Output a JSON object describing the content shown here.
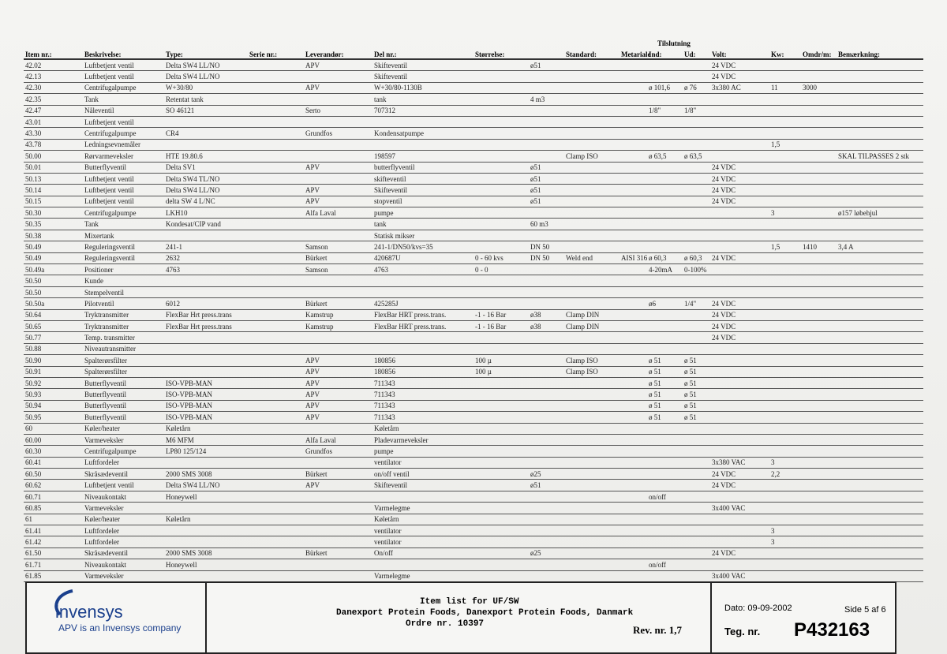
{
  "table": {
    "group_header": "Tilslutning",
    "headers": [
      "Item nr.:",
      "Beskrivelse:",
      "Type:",
      "Serie nr.:",
      "Leverandør:",
      "Del nr.:",
      "Størrelse:",
      null,
      "Standard:",
      "Metariale",
      "Ind:",
      "Ud:",
      "Volt:",
      "Kw:",
      "Omdr/m:",
      "Bemærkning:"
    ],
    "rows": [
      [
        "42.02",
        "Luftbetjent ventil",
        "Delta SW4 LL/NO",
        null,
        "APV",
        "Skifteventil",
        null,
        "ø51",
        null,
        null,
        null,
        null,
        "24 VDC",
        null,
        null,
        null
      ],
      [
        "42.13",
        "Luftbetjent ventil",
        "Delta SW4 LL/NO",
        null,
        null,
        "Skifteventil",
        null,
        null,
        null,
        null,
        null,
        null,
        "24 VDC",
        null,
        null,
        null
      ],
      [
        "42.30",
        "Centrifugalpumpe",
        "W+30/80",
        null,
        "APV",
        "W+30/80-1130B",
        null,
        null,
        null,
        null,
        "ø 101,6",
        "ø 76",
        "3x380 AC",
        "11",
        "3000",
        null
      ],
      [
        "42.35",
        "Tank",
        "Retentat tank",
        null,
        null,
        "tank",
        null,
        "4 m3",
        null,
        null,
        null,
        null,
        null,
        null,
        null,
        null
      ],
      [
        "42.47",
        "Nåleventil",
        "SO 46121",
        null,
        "Serto",
        "707312",
        null,
        null,
        null,
        null,
        "1/8\"",
        "1/8\"",
        null,
        null,
        null,
        null
      ],
      [
        "43.01",
        "Luftbetjent ventil",
        null,
        null,
        null,
        null,
        null,
        null,
        null,
        null,
        null,
        null,
        null,
        null,
        null,
        null
      ],
      [
        "43.30",
        "Centrifugalpumpe",
        "CR4",
        null,
        "Grundfos",
        "Kondensatpumpe",
        null,
        null,
        null,
        null,
        null,
        null,
        null,
        null,
        null,
        null
      ],
      [
        "43.78",
        "Ledningsevnemåler",
        null,
        null,
        null,
        null,
        null,
        null,
        null,
        null,
        null,
        null,
        null,
        "1,5",
        null,
        null
      ],
      [
        "50.00",
        "Rørvarmeveksler",
        "HTE 19.80.6",
        null,
        null,
        "198597",
        null,
        null,
        "Clamp ISO",
        null,
        "ø 63,5",
        "ø 63,5",
        null,
        null,
        null,
        "SKAL TILPASSES 2 stk"
      ],
      [
        "50.01",
        "Butterflyventil",
        "Delta SV1",
        null,
        "APV",
        "butterflyventil",
        null,
        "ø51",
        null,
        null,
        null,
        null,
        "24 VDC",
        null,
        null,
        null
      ],
      [
        "50.13",
        "Luftbetjent ventil",
        "Delta SW4 TL/NO",
        null,
        null,
        "skifteventil",
        null,
        "ø51",
        null,
        null,
        null,
        null,
        "24 VDC",
        null,
        null,
        null
      ],
      [
        "50.14",
        "Luftbetjent ventil",
        "Delta SW4 LL/NO",
        null,
        "APV",
        "Skifteventil",
        null,
        "ø51",
        null,
        null,
        null,
        null,
        "24 VDC",
        null,
        null,
        null
      ],
      [
        "50.15",
        "Luftbetjent ventil",
        "delta SW 4 L/NC",
        null,
        "APV",
        "stopventil",
        null,
        "ø51",
        null,
        null,
        null,
        null,
        "24 VDC",
        null,
        null,
        null
      ],
      [
        "50.30",
        "Centrifugalpumpe",
        "LKH10",
        null,
        "Alfa Laval",
        "pumpe",
        null,
        null,
        null,
        null,
        null,
        null,
        null,
        "3",
        null,
        "ø157 løbehjul"
      ],
      [
        "50.35",
        "Tank",
        "Kondesat/CIP vand",
        null,
        null,
        "tank",
        null,
        "60 m3",
        null,
        null,
        null,
        null,
        null,
        null,
        null,
        null
      ],
      [
        "50.38",
        "Mixertank",
        null,
        null,
        null,
        "Statisk mikser",
        null,
        null,
        null,
        null,
        null,
        null,
        null,
        null,
        null,
        null
      ],
      [
        "50.49",
        "Reguleringsventil",
        "241-1",
        null,
        "Samson",
        "241-1/DN50/kvs=35",
        null,
        "DN 50",
        null,
        null,
        null,
        null,
        null,
        "1,5",
        "1410",
        "3,4 A"
      ],
      [
        "50.49",
        "Reguleringsventil",
        "2632",
        null,
        "Bürkert",
        "420687U",
        "0 - 60 kvs",
        "DN 50",
        "Weld end",
        "AISI 316",
        "ø 60,3",
        "ø 60,3",
        "24 VDC",
        null,
        null,
        null
      ],
      [
        "50.49a",
        "Positioner",
        "4763",
        null,
        "Samson",
        "4763",
        "0 - 0",
        null,
        null,
        null,
        "4-20mA",
        "0-100%",
        null,
        null,
        null,
        null
      ],
      [
        "50.50",
        "Kunde",
        null,
        null,
        null,
        null,
        null,
        null,
        null,
        null,
        null,
        null,
        null,
        null,
        null,
        null
      ],
      [
        "50.50",
        "Stempelventil",
        null,
        null,
        null,
        null,
        null,
        null,
        null,
        null,
        null,
        null,
        null,
        null,
        null,
        null
      ],
      [
        "50.50a",
        "Pilotventil",
        "6012",
        null,
        "Bürkert",
        "425285J",
        null,
        null,
        null,
        null,
        "ø6",
        "1/4\"",
        "24 VDC",
        null,
        null,
        null
      ],
      [
        "50.64",
        "Tryktransmitter",
        "FlexBar Hrt press.trans",
        null,
        "Kamstrup",
        "FlexBar HRT press.trans.",
        "-1 - 16 Bar",
        "ø38",
        "Clamp DIN",
        null,
        null,
        null,
        "24 VDC",
        null,
        null,
        null
      ],
      [
        "50.65",
        "Tryktransmitter",
        "FlexBar Hrt press.trans",
        null,
        "Kamstrup",
        "FlexBar HRT press.trans.",
        "-1 - 16 Bar",
        "ø38",
        "Clamp DIN",
        null,
        null,
        null,
        "24 VDC",
        null,
        null,
        null
      ],
      [
        "50.77",
        "Temp. transmitter",
        null,
        null,
        null,
        null,
        null,
        null,
        null,
        null,
        null,
        null,
        "24 VDC",
        null,
        null,
        null
      ],
      [
        "50.88",
        "Niveautransmitter",
        null,
        null,
        null,
        null,
        null,
        null,
        null,
        null,
        null,
        null,
        null,
        null,
        null,
        null
      ],
      [
        "50.90",
        "Spalterørsfilter",
        null,
        null,
        "APV",
        "180856",
        "100 µ",
        null,
        "Clamp ISO",
        null,
        "ø 51",
        "ø 51",
        null,
        null,
        null,
        null
      ],
      [
        "50.91",
        "Spalterørsfilter",
        null,
        null,
        "APV",
        "180856",
        "100 µ",
        null,
        "Clamp ISO",
        null,
        "ø 51",
        "ø 51",
        null,
        null,
        null,
        null
      ],
      [
        "50.92",
        "Butterflyventil",
        "ISO-VPB-MAN",
        null,
        "APV",
        "711343",
        null,
        null,
        null,
        null,
        "ø 51",
        "ø 51",
        null,
        null,
        null,
        null
      ],
      [
        "50.93",
        "Butterflyventil",
        "ISO-VPB-MAN",
        null,
        "APV",
        "711343",
        null,
        null,
        null,
        null,
        "ø 51",
        "ø 51",
        null,
        null,
        null,
        null
      ],
      [
        "50.94",
        "Butterflyventil",
        "ISO-VPB-MAN",
        null,
        "APV",
        "711343",
        null,
        null,
        null,
        null,
        "ø 51",
        "ø 51",
        null,
        null,
        null,
        null
      ],
      [
        "50.95",
        "Butterflyventil",
        "ISO-VPB-MAN",
        null,
        "APV",
        "711343",
        null,
        null,
        null,
        null,
        "ø 51",
        "ø 51",
        null,
        null,
        null,
        null
      ],
      [
        "60",
        "Køler/heater",
        "Køletårn",
        null,
        null,
        "Køletårn",
        null,
        null,
        null,
        null,
        null,
        null,
        null,
        null,
        null,
        null
      ],
      [
        "60.00",
        "Varmeveksler",
        "M6 MFM",
        null,
        "Alfa Laval",
        "Pladevarmeveksler",
        null,
        null,
        null,
        null,
        null,
        null,
        null,
        null,
        null,
        null
      ],
      [
        "60.30",
        "Centrifugalpumpe",
        "LP80 125/124",
        null,
        "Grundfos",
        "pumpe",
        null,
        null,
        null,
        null,
        null,
        null,
        null,
        null,
        null,
        null
      ],
      [
        "60.41",
        "Luftfordeler",
        null,
        null,
        null,
        "ventilator",
        null,
        null,
        null,
        null,
        null,
        null,
        "3x380 VAC",
        "3",
        null,
        null
      ],
      [
        "60.50",
        "Skråsædeventil",
        "2000 SMS 3008",
        null,
        "Bürkert",
        "on/off ventil",
        null,
        "ø25",
        null,
        null,
        null,
        null,
        "24 VDC",
        "2,2",
        null,
        null
      ],
      [
        "60.62",
        "Luftbetjent ventil",
        "Delta SW4 LL/NO",
        null,
        "APV",
        "Skifteventil",
        null,
        "ø51",
        null,
        null,
        null,
        null,
        "24 VDC",
        null,
        null,
        null
      ],
      [
        "60.71",
        "Niveaukontakt",
        "Honeywell",
        null,
        null,
        null,
        null,
        null,
        null,
        null,
        "on/off",
        null,
        null,
        null,
        null,
        null
      ],
      [
        "60.85",
        "Varmeveksler",
        null,
        null,
        null,
        "Varmelegme",
        null,
        null,
        null,
        null,
        null,
        null,
        "3x400 VAC",
        null,
        null,
        null
      ],
      [
        "61",
        "Køler/heater",
        "Køletårn",
        null,
        null,
        "Køletårn",
        null,
        null,
        null,
        null,
        null,
        null,
        null,
        null,
        null,
        null
      ],
      [
        "61.41",
        "Luftfordeler",
        null,
        null,
        null,
        "ventilator",
        null,
        null,
        null,
        null,
        null,
        null,
        null,
        "3",
        null,
        null
      ],
      [
        "61.42",
        "Luftfordeler",
        null,
        null,
        null,
        "ventilator",
        null,
        null,
        null,
        null,
        null,
        null,
        null,
        "3",
        null,
        null
      ],
      [
        "61.50",
        "Skråsædeventil",
        "2000 SMS 3008",
        null,
        "Bürkert",
        "On/off",
        null,
        "ø25",
        null,
        null,
        null,
        null,
        "24 VDC",
        null,
        null,
        null
      ],
      [
        "61.71",
        "Niveaukontakt",
        "Honeywell",
        null,
        null,
        null,
        null,
        null,
        null,
        null,
        "on/off",
        null,
        null,
        null,
        null,
        null
      ],
      [
        "61.85",
        "Varmeveksler",
        null,
        null,
        null,
        "Varmelegme",
        null,
        null,
        null,
        null,
        null,
        null,
        "3x400 VAC",
        null,
        null,
        null
      ]
    ]
  },
  "footer": {
    "logo": "invensys",
    "tagline": "APV is an Invensys company",
    "title": "Item list for UF/SW",
    "customer": "Danexport Protein Foods, Danexport Protein Foods, Danmark",
    "order": "Ordre nr. 10397",
    "revision": "Rev. nr. 1,7",
    "date": "Dato: 09-09-2002",
    "page": "Side 5 af 6",
    "drawing_label": "Teg. nr.",
    "drawing_number": "P432163"
  }
}
